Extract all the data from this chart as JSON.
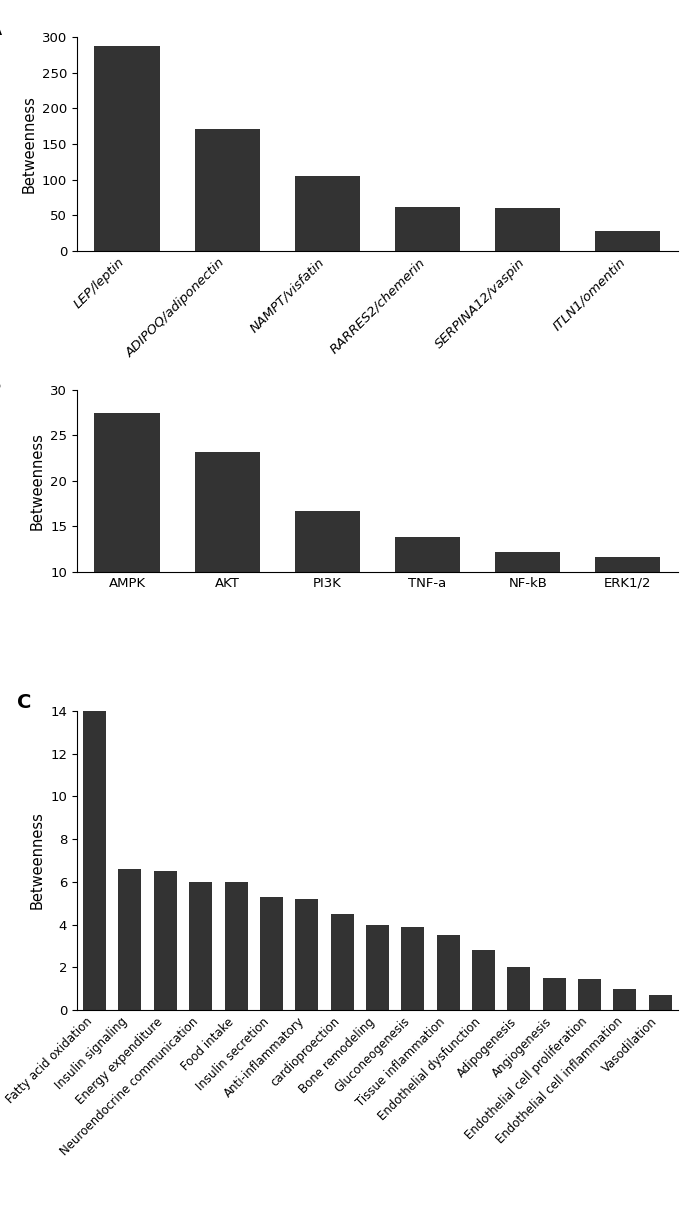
{
  "panel_A": {
    "categories": [
      "LEP/leptin",
      "ADIPOQ/adiponectin",
      "NAMPT/visfatin",
      "RARRES2/chemerin",
      "SERPINA12/vaspin",
      "ITLN1/omentin"
    ],
    "values": [
      287,
      171,
      105,
      61,
      60,
      28
    ],
    "ylim": [
      0,
      300
    ],
    "yticks": [
      0,
      50,
      100,
      150,
      200,
      250,
      300
    ],
    "ylabel": "Betweenness",
    "label": "A"
  },
  "panel_B": {
    "categories": [
      "AMPK",
      "AKT",
      "PI3K",
      "TNF-a",
      "NF-kB",
      "ERK1/2"
    ],
    "values": [
      27.5,
      23.2,
      16.7,
      13.8,
      12.2,
      11.6
    ],
    "ylim": [
      10,
      30
    ],
    "yticks": [
      10,
      15,
      20,
      25,
      30
    ],
    "ylabel": "Betweenness",
    "label": "B"
  },
  "panel_C": {
    "categories": [
      "Fatty acid oxidation",
      "Insulin signaling",
      "Energy expenditure",
      "Neuroendocrine communication",
      "Food intake",
      "Insulin secretion",
      "Anti-inflammatory",
      "cardioproection",
      "Bone remodeling",
      "Gluconeogenesis",
      "Tissue inflammation",
      "Endothelial dysfunction",
      "Adipogenesis",
      "Angiogenesis",
      "Endothelial cell proliferation",
      "Endothelial cell inflammation",
      "Vasodilation"
    ],
    "values": [
      14.0,
      6.6,
      6.5,
      6.0,
      6.0,
      5.3,
      5.2,
      4.5,
      4.0,
      3.9,
      3.5,
      2.8,
      2.0,
      1.5,
      1.45,
      1.0,
      0.7
    ],
    "ylim": [
      0,
      14
    ],
    "yticks": [
      0,
      2,
      4,
      6,
      8,
      10,
      12,
      14
    ],
    "ylabel": "Betweenness",
    "label": "C"
  },
  "bar_color": "#333333",
  "bg_color": "#ffffff",
  "tick_fontsize": 9.5,
  "label_fontsize": 14,
  "ylabel_fontsize": 10.5
}
